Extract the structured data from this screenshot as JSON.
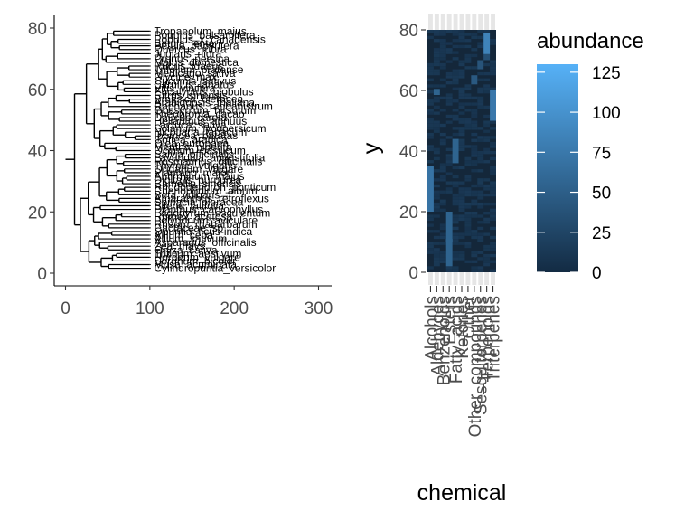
{
  "chart_data": [
    {
      "type": "tree",
      "title": "",
      "xlabel": "",
      "ylabel": "",
      "xlim": [
        0,
        300
      ],
      "ylim": [
        0,
        80
      ],
      "x_ticks": [
        0,
        100,
        200,
        300
      ],
      "y_ticks": [
        0,
        20,
        40,
        60,
        80
      ],
      "x_tick_labels": [
        "0",
        "100",
        "200",
        "300"
      ],
      "y_tick_labels": [
        "0",
        "20",
        "40",
        "60",
        "80"
      ],
      "tip_labels": [
        {
          "label": "Tropaeolum_majus",
          "y": 79
        },
        {
          "label": "Populus_balsamifera",
          "y": 77.6
        },
        {
          "label": "Populus_x_canadensis",
          "y": 76.3
        },
        {
          "label": "Betula_lenta",
          "y": 75
        },
        {
          "label": "Betula_papyrifera",
          "y": 74.2
        },
        {
          "label": "Quercus_rubra",
          "y": 73
        },
        {
          "label": "Juglans_nigra",
          "y": 71.6
        },
        {
          "label": "Prunus_persica",
          "y": 70
        },
        {
          "label": "Malus_domestica",
          "y": 68.8
        },
        {
          "label": "Rubus_idaeus",
          "y": 67.6
        },
        {
          "label": "Trifolium_pratense",
          "y": 66.4
        },
        {
          "label": "Medicago_sativa",
          "y": 65.2
        },
        {
          "label": "Glycine_max",
          "y": 64
        },
        {
          "label": "Cucumis_sativus",
          "y": 62.8
        },
        {
          "label": "Citrullus_lanatus",
          "y": 61.6
        },
        {
          "label": "Vitis_vinifera",
          "y": 60.4
        },
        {
          "label": "Eucalyptus_globulus",
          "y": 59.2
        },
        {
          "label": "Citrus_sinensis",
          "y": 58
        },
        {
          "label": "Brassica_oleracea",
          "y": 56.8
        },
        {
          "label": "Arabidopsis_thaliana",
          "y": 55.6
        },
        {
          "label": "Raphanus_raphanistrum",
          "y": 54.4
        },
        {
          "label": "Gossypium_hirsutum",
          "y": 53.2
        },
        {
          "label": "Theobroma_cacao",
          "y": 52
        },
        {
          "label": "Daucus_carota",
          "y": 50.8
        },
        {
          "label": "Helianthus_annuus",
          "y": 49.6
        },
        {
          "label": "Lactuca_sativa",
          "y": 48.4
        },
        {
          "label": "Solanum_lycopersicum",
          "y": 47.2
        },
        {
          "label": "Nicotiana_tabacum",
          "y": 46
        },
        {
          "label": "Ipomoea_batatas",
          "y": 44.8
        },
        {
          "label": "Coffea_arabica",
          "y": 43.6
        },
        {
          "label": "Olea_europaea",
          "y": 42.4
        },
        {
          "label": "Mentha_piperita",
          "y": 41.2
        },
        {
          "label": "Ocimum_basilicum",
          "y": 40
        },
        {
          "label": "Salvia_officinalis",
          "y": 38.8
        },
        {
          "label": "Lavandula_angustifolia",
          "y": 37.6
        },
        {
          "label": "Rosmarinus_officinalis",
          "y": 36.4
        },
        {
          "label": "Thymus_vulgaris",
          "y": 35.2
        },
        {
          "label": "Origanum_vulgare",
          "y": 34
        },
        {
          "label": "Plantago_major",
          "y": 32.8
        },
        {
          "label": "Antirrhinum_majus",
          "y": 31.6
        },
        {
          "label": "Digitalis_purpurea",
          "y": 30.4
        },
        {
          "label": "Camellia_sinensis",
          "y": 29.2
        },
        {
          "label": "Rhododendron_ponticum",
          "y": 28
        },
        {
          "label": "Chenopodium_album",
          "y": 26.8
        },
        {
          "label": "Beta_vulgaris",
          "y": 25.6
        },
        {
          "label": "Amaranthus_retroflexus",
          "y": 24.4
        },
        {
          "label": "Spinacia_oleracea",
          "y": 23.2
        },
        {
          "label": "Silene_latifolia",
          "y": 22
        },
        {
          "label": "Dianthus_caryophyllus",
          "y": 20.8
        },
        {
          "label": "Fagopyrum_esculentum",
          "y": 19.6
        },
        {
          "label": "Rumex_acetosa",
          "y": 18.4
        },
        {
          "label": "Polygonum_aviculare",
          "y": 17.2
        },
        {
          "label": "Rheum_rhabarbarum",
          "y": 16
        },
        {
          "label": "Cactaceae_sp",
          "y": 14.8
        },
        {
          "label": "Opuntia_ficus-indica",
          "y": 13.6
        },
        {
          "label": "Allium_cepa",
          "y": 12.4
        },
        {
          "label": "Allium_sativum",
          "y": 11.2
        },
        {
          "label": "Asparagus_officinalis",
          "y": 10
        },
        {
          "label": "Zea_mays",
          "y": 8.8
        },
        {
          "label": "Oryza_sativa",
          "y": 7.6
        },
        {
          "label": "Triticum_aestivum",
          "y": 6.4
        },
        {
          "label": "Hordeum_vulgare",
          "y": 5.2
        },
        {
          "label": "Sorghum_bicolor",
          "y": 4
        },
        {
          "label": "Musa_acuminata",
          "y": 2.8
        },
        {
          "label": "Cylindropuntia_versicolor",
          "y": 1.6
        }
      ]
    },
    {
      "type": "heatmap",
      "title": "",
      "xlabel": "chemical",
      "ylabel": "y",
      "ylim": [
        0,
        80
      ],
      "y_ticks": [
        0,
        20,
        40,
        60,
        80
      ],
      "y_tick_labels": [
        "0",
        "20",
        "40",
        "60",
        "80"
      ],
      "categories": [
        "Alcohols",
        "Aldehydes",
        "Benzenoids",
        "Esters",
        "Fatty_acids",
        "Ketones",
        "Other",
        "Other_compounds",
        "Sesquiterpenes",
        "Terpenoids",
        "Triterpenes"
      ],
      "legend": {
        "title": "abundance",
        "min": 0,
        "max": 130,
        "ticks": [
          0,
          25,
          50,
          75,
          100,
          125
        ],
        "tick_labels": [
          "0",
          "25",
          "50",
          "75",
          "100",
          "125"
        ],
        "low_color": "#132B43",
        "high_color": "#56B1F7",
        "position": "right"
      },
      "highlights": [
        {
          "column": "Alcohols",
          "y_from": 20,
          "y_to": 35,
          "value": 70
        },
        {
          "column": "Aldehydes",
          "y_from": 58.5,
          "y_to": 60.5,
          "value": 55
        },
        {
          "column": "Esters",
          "y_from": 10,
          "y_to": 11,
          "value": 110
        },
        {
          "column": "Esters",
          "y_from": 2,
          "y_to": 20,
          "value": 55
        },
        {
          "column": "Fatty_acids",
          "y_from": 36,
          "y_to": 44,
          "value": 55
        },
        {
          "column": "Other_compounds",
          "y_from": 62,
          "y_to": 65,
          "value": 45
        },
        {
          "column": "Sesquiterpenes",
          "y_from": 67,
          "y_to": 70,
          "value": 40
        },
        {
          "column": "Terpenoids",
          "y_from": 70,
          "y_to": 72,
          "value": 35
        },
        {
          "column": "Terpenoids",
          "y_from": 72,
          "y_to": 79,
          "value": 85
        },
        {
          "column": "Triterpenes",
          "y_from": 50,
          "y_to": 60,
          "value": 75
        }
      ]
    }
  ]
}
